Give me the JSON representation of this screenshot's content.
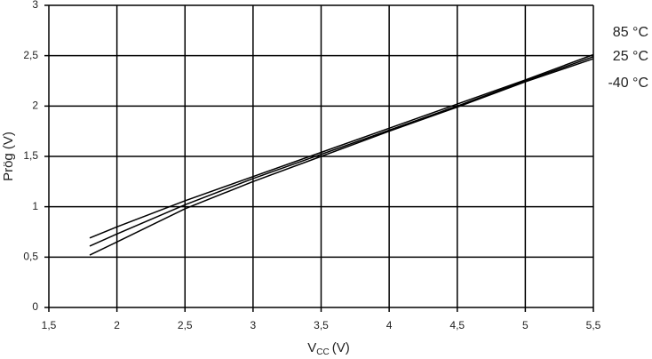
{
  "chart_data": {
    "type": "line",
    "x_label": [
      "V",
      "CC",
      "(V)"
    ],
    "y_label": "Prög (V)",
    "x": [
      1.8,
      2,
      2.5,
      3,
      3.5,
      4,
      4.5,
      5,
      5.5
    ],
    "series": [
      {
        "name": "85 °C",
        "color": "#000000",
        "values": [
          0.69,
          0.8,
          1.06,
          1.3,
          1.54,
          1.78,
          2.02,
          2.26,
          2.51
        ]
      },
      {
        "name": "25 °C",
        "color": "#000000",
        "values": [
          0.61,
          0.73,
          1.02,
          1.28,
          1.52,
          1.76,
          2.0,
          2.25,
          2.49
        ]
      },
      {
        "name": "-40 °C",
        "color": "#000000",
        "values": [
          0.52,
          0.65,
          0.98,
          1.25,
          1.5,
          1.75,
          1.99,
          2.24,
          2.47
        ]
      }
    ],
    "xlim": [
      1.5,
      5.5
    ],
    "xticks": [
      {
        "value": 1.5,
        "label": "1,5"
      },
      2,
      {
        "value": 2.5,
        "label": "2,5"
      },
      3,
      {
        "value": 3.5,
        "label": "3,5"
      },
      4,
      {
        "value": 4.5,
        "label": "4,5"
      },
      5,
      {
        "value": 5.5,
        "label": "5,5"
      }
    ],
    "ylim": [
      0,
      3
    ],
    "yticks": [
      0,
      {
        "value": 0.5,
        "label": "0,5"
      },
      1,
      {
        "value": 1.5,
        "label": "1,5"
      },
      2,
      {
        "value": 2.5,
        "label": "2,5"
      },
      3
    ],
    "grid": true,
    "legend": "right"
  }
}
